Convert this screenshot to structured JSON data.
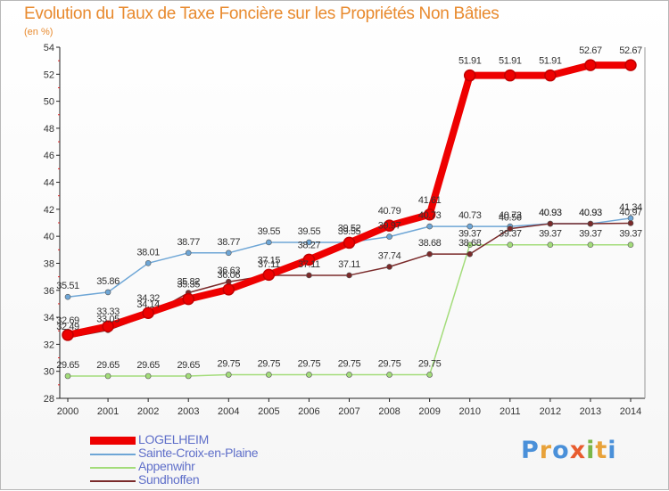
{
  "title": "Evolution du Taux de Taxe Foncière sur les Propriétés Non Bâties",
  "unit": "(en %)",
  "brand": {
    "text": "Proxiti",
    "letter_colors": [
      "#4a90d9",
      "#e8a23a",
      "#4a90d9",
      "#e85c2e",
      "#7ab648",
      "#e8a23a",
      "#4a90d9"
    ]
  },
  "chart_data": {
    "type": "line",
    "x": [
      2000,
      2001,
      2002,
      2003,
      2004,
      2005,
      2006,
      2007,
      2008,
      2009,
      2010,
      2011,
      2012,
      2013,
      2014
    ],
    "ylim": [
      28,
      54
    ],
    "yticks": [
      28,
      30,
      32,
      34,
      36,
      38,
      40,
      42,
      44,
      46,
      48,
      50,
      52,
      54
    ],
    "grid": false,
    "legend_position": "bottom-left",
    "series": [
      {
        "name": "LOGELHEIM",
        "color": "#ee0000",
        "values": [
          32.69,
          33.33,
          34.32,
          35.35,
          36.06,
          37.15,
          38.27,
          39.52,
          40.79,
          41.61,
          51.91,
          51.91,
          51.91,
          52.67,
          52.67
        ],
        "labels": [
          "32.69",
          "33.33",
          "34.32",
          "35.35",
          "36.06",
          "37.15",
          "38.27",
          "39.52",
          "40.79",
          "41.61",
          "51.91",
          "51.91",
          "51.91",
          "52.67",
          "52.67"
        ]
      },
      {
        "name": "Sainte-Croix-en-Plaine",
        "color": "#6ea6d6",
        "values": [
          35.51,
          35.86,
          38.01,
          38.77,
          38.77,
          39.55,
          39.55,
          39.55,
          39.97,
          40.73,
          40.73,
          40.73,
          40.93,
          40.93,
          41.34
        ],
        "labels": [
          "35.51",
          "35.86",
          "38.01",
          "38.77",
          "38.77",
          "39.55",
          "39.55",
          "39.55",
          "39.97",
          "40.73",
          "40.73",
          "40.73",
          "40.93",
          "40.93",
          "41.34"
        ]
      },
      {
        "name": "Appenwihr",
        "color": "#a3dc7a",
        "values": [
          29.65,
          29.65,
          29.65,
          29.65,
          29.75,
          29.75,
          29.75,
          29.75,
          29.75,
          29.75,
          39.37,
          39.37,
          39.37,
          39.37,
          39.37
        ],
        "labels": [
          "29.65",
          "29.65",
          "29.65",
          "29.65",
          "29.75",
          "29.75",
          "29.75",
          "29.75",
          "29.75",
          "29.75",
          "39.37",
          "39.37",
          "39.37",
          "39.37",
          "39.37"
        ]
      },
      {
        "name": "Sundhoffen",
        "color": "#7a2a2a",
        "values": [
          32.49,
          33.05,
          34.14,
          35.82,
          36.63,
          37.11,
          37.11,
          37.11,
          37.74,
          38.68,
          38.68,
          40.56,
          40.93,
          40.93,
          40.97
        ],
        "labels": [
          "32.49",
          "33.05",
          "34.14",
          "35.82",
          "36.63",
          "37.11",
          "37.11",
          "37.11",
          "37.74",
          "38.68",
          "38.68",
          "40.56",
          "40.93",
          "40.93",
          "40.97"
        ]
      }
    ]
  }
}
